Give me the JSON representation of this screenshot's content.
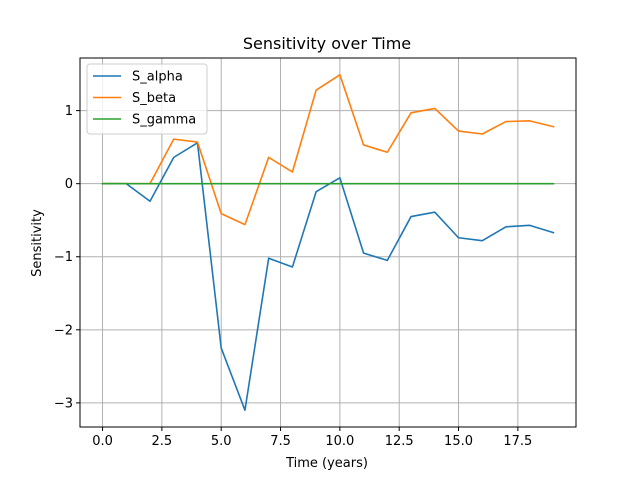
{
  "chart_data": {
    "type": "line",
    "title": "Sensitivity over Time",
    "xlabel": "Time (years)",
    "ylabel": "Sensitivity",
    "xlim": [
      -0.95,
      19.95
    ],
    "ylim": [
      -3.33,
      1.72
    ],
    "xticks": [
      0.0,
      2.5,
      5.0,
      7.5,
      10.0,
      12.5,
      15.0,
      17.5
    ],
    "xtick_labels": [
      "0.0",
      "2.5",
      "5.0",
      "7.5",
      "10.0",
      "12.5",
      "15.0",
      "17.5"
    ],
    "yticks": [
      -3,
      -2,
      -1,
      0,
      1
    ],
    "ytick_labels": [
      "−3",
      "−2",
      "−1",
      "0",
      "1"
    ],
    "grid": true,
    "legend": "upper-left",
    "x": [
      0,
      1,
      2,
      3,
      4,
      5,
      6,
      7,
      8,
      9,
      10,
      11,
      12,
      13,
      14,
      15,
      16,
      17,
      18,
      19
    ],
    "series": [
      {
        "name": "S_alpha",
        "color": "#1f77b4",
        "values": [
          0,
          0,
          -0.24,
          0.36,
          0.56,
          -2.25,
          -3.1,
          -1.02,
          -1.14,
          -0.11,
          0.08,
          -0.95,
          -1.05,
          -0.45,
          -0.39,
          -0.74,
          -0.78,
          -0.59,
          -0.57,
          -0.67
        ]
      },
      {
        "name": "S_beta",
        "color": "#ff7f0e",
        "values": [
          0,
          0,
          0,
          0.61,
          0.57,
          -0.41,
          -0.56,
          0.36,
          0.16,
          1.28,
          1.49,
          0.53,
          0.43,
          0.97,
          1.03,
          0.72,
          0.68,
          0.85,
          0.86,
          0.78
        ]
      },
      {
        "name": "S_gamma",
        "color": "#2ca02c",
        "values": [
          0,
          0,
          0,
          0,
          0,
          0,
          0,
          0,
          0,
          0,
          0,
          0,
          0,
          0,
          0,
          0,
          0,
          0,
          0,
          0
        ]
      }
    ]
  }
}
